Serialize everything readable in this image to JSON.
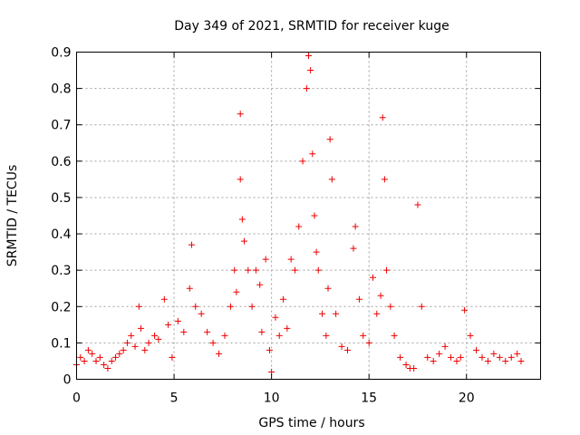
{
  "chart_data": {
    "type": "scatter",
    "title": "Day 349 of 2021, SRMTID for receiver kuge",
    "xlabel": "GPS time / hours",
    "ylabel": "SRMTID / TECUs",
    "xlim": [
      0,
      23.8
    ],
    "ylim": [
      0,
      0.9
    ],
    "x_ticks": [
      0,
      5,
      10,
      15,
      20
    ],
    "y_ticks": [
      0,
      0.1,
      0.2,
      0.3,
      0.4,
      0.5,
      0.6,
      0.7,
      0.8,
      0.9
    ],
    "x_tick_labels": [
      "0",
      "5",
      "10",
      "15",
      "20"
    ],
    "y_tick_labels": [
      "0",
      "0.1",
      "0.2",
      "0.3",
      "0.4",
      "0.5",
      "0.6",
      "0.7",
      "0.8",
      "0.9"
    ],
    "grid": true,
    "marker": "+",
    "color": "#ee0000",
    "series": [
      {
        "name": "SRMTID",
        "x": [
          0.0,
          0.2,
          0.4,
          0.6,
          0.8,
          1.0,
          1.2,
          1.4,
          1.6,
          1.8,
          2.0,
          2.2,
          2.4,
          2.6,
          2.8,
          3.0,
          3.2,
          3.3,
          3.5,
          3.7,
          4.0,
          4.2,
          4.5,
          4.7,
          4.9,
          5.2,
          5.5,
          5.8,
          5.9,
          6.1,
          6.4,
          6.7,
          7.0,
          7.3,
          7.6,
          7.9,
          8.1,
          8.2,
          8.4,
          8.4,
          8.5,
          8.6,
          8.8,
          9.0,
          9.2,
          9.4,
          9.5,
          9.7,
          9.9,
          10.0,
          10.2,
          10.4,
          10.6,
          10.8,
          11.0,
          11.2,
          11.4,
          11.6,
          11.8,
          11.9,
          12.0,
          12.1,
          12.2,
          12.3,
          12.4,
          12.6,
          12.8,
          12.9,
          13.0,
          13.1,
          13.3,
          13.6,
          13.9,
          14.2,
          14.3,
          14.5,
          14.7,
          15.0,
          15.2,
          15.4,
          15.6,
          15.7,
          15.8,
          15.9,
          16.1,
          16.3,
          16.6,
          16.9,
          17.1,
          17.3,
          17.5,
          17.7,
          18.0,
          18.3,
          18.6,
          18.9,
          19.2,
          19.5,
          19.7,
          19.9,
          20.2,
          20.5,
          20.8,
          21.1,
          21.4,
          21.7,
          22.0,
          22.3,
          22.6,
          22.8
        ],
        "y": [
          0.04,
          0.06,
          0.05,
          0.08,
          0.07,
          0.05,
          0.06,
          0.04,
          0.03,
          0.05,
          0.06,
          0.07,
          0.08,
          0.1,
          0.12,
          0.09,
          0.2,
          0.14,
          0.08,
          0.1,
          0.12,
          0.11,
          0.22,
          0.15,
          0.06,
          0.16,
          0.13,
          0.25,
          0.37,
          0.2,
          0.18,
          0.13,
          0.1,
          0.07,
          0.12,
          0.2,
          0.3,
          0.24,
          0.73,
          0.55,
          0.44,
          0.38,
          0.3,
          0.2,
          0.3,
          0.26,
          0.13,
          0.33,
          0.08,
          0.02,
          0.17,
          0.12,
          0.22,
          0.14,
          0.33,
          0.3,
          0.42,
          0.6,
          0.8,
          0.89,
          0.85,
          0.62,
          0.45,
          0.35,
          0.3,
          0.18,
          0.12,
          0.25,
          0.66,
          0.55,
          0.18,
          0.09,
          0.08,
          0.36,
          0.42,
          0.22,
          0.12,
          0.1,
          0.28,
          0.18,
          0.23,
          0.72,
          0.55,
          0.3,
          0.2,
          0.12,
          0.06,
          0.04,
          0.03,
          0.03,
          0.48,
          0.2,
          0.06,
          0.05,
          0.07,
          0.09,
          0.06,
          0.05,
          0.06,
          0.19,
          0.12,
          0.08,
          0.06,
          0.05,
          0.07,
          0.06,
          0.05,
          0.06,
          0.07,
          0.05
        ]
      }
    ]
  }
}
